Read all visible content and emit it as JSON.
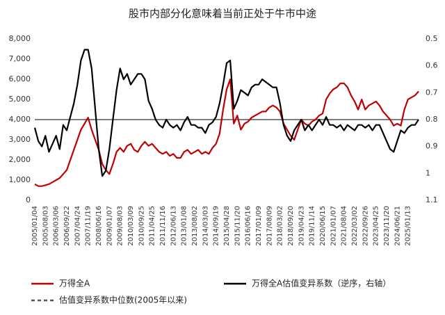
{
  "chart_data": {
    "type": "line",
    "title": "股市内部分化意味着当前正处于牛市中途",
    "categories": [
      "2005/01/04",
      null,
      null,
      "2005/08/03",
      null,
      null,
      "2006/03/06",
      null,
      null,
      "2006/09/22",
      null,
      null,
      "2007/04/24",
      null,
      null,
      "2007/11/19",
      null,
      null,
      "2008/06/16",
      null,
      null,
      "2009/01/07",
      null,
      null,
      "2009/08/03",
      null,
      null,
      "2010/03/09",
      null,
      null,
      "2010/09/25",
      null,
      null,
      "2011/04/25",
      null,
      null,
      "2011/11/16",
      null,
      null,
      "2012/06/13",
      null,
      null,
      "2013/01/08",
      null,
      null,
      "2013/08/02",
      null,
      null,
      "2014/03/03",
      null,
      null,
      "2014/09/19",
      null,
      null,
      "2015/04/28",
      null,
      null,
      "2015/11/20",
      null,
      null,
      "2016/06/16",
      null,
      null,
      "2017/01/09",
      null,
      null,
      "2017/08/09",
      null,
      null,
      "2018/03/02",
      null,
      null,
      "2018/09/20",
      null,
      null,
      "2019/04/23",
      null,
      null,
      "2019/11/14",
      null,
      null,
      "2020/06/15",
      null,
      null,
      "2021/01/07",
      null,
      null,
      "2021/08/04",
      null,
      null,
      "2022/03/02",
      null,
      null,
      "2022/09/26",
      null,
      null,
      "2023/04/25",
      null,
      null,
      "2023/11/20",
      null,
      null,
      "2024/06/21",
      null,
      null,
      "2025/01/13",
      null,
      null,
      null
    ],
    "series": [
      {
        "name": "万得全A",
        "color": "#c00000",
        "values": [
          800,
          700,
          700,
          750,
          800,
          900,
          1000,
          1100,
          1300,
          1500,
          2000,
          2500,
          3000,
          3500,
          3800,
          4100,
          3500,
          3000,
          2500,
          1800,
          1500,
          1300,
          1800,
          2400,
          2600,
          2400,
          2700,
          2800,
          2500,
          2400,
          2700,
          2900,
          2700,
          2800,
          2600,
          2400,
          2300,
          2400,
          2200,
          2300,
          2100,
          2100,
          2400,
          2500,
          2300,
          2400,
          2500,
          2300,
          2400,
          2300,
          2600,
          2800,
          3300,
          4500,
          5500,
          6000,
          3800,
          4200,
          3500,
          3800,
          3900,
          4100,
          4200,
          4300,
          4400,
          4400,
          4600,
          4700,
          4600,
          4400,
          3800,
          3500,
          3200,
          3000,
          3500,
          4000,
          3800,
          3700,
          3900,
          4000,
          4200,
          4300,
          5000,
          5300,
          5500,
          5600,
          5800,
          5800,
          5600,
          5200,
          4900,
          4500,
          5000,
          4500,
          4700,
          4800,
          4900,
          4700,
          4400,
          4200,
          4000,
          3700,
          3800,
          3700,
          4500,
          5000,
          5100,
          5200,
          5400
        ]
      },
      {
        "name": "万得全A估值变异系数（逆序，右轴）",
        "color": "#000000",
        "axis": "y2",
        "values": [
          0.83,
          0.88,
          0.9,
          0.86,
          0.92,
          0.89,
          0.86,
          0.91,
          0.82,
          0.84,
          0.79,
          0.74,
          0.67,
          0.58,
          0.54,
          0.54,
          0.61,
          0.76,
          0.91,
          1.01,
          0.99,
          0.91,
          0.8,
          0.69,
          0.61,
          0.65,
          0.63,
          0.67,
          0.65,
          0.63,
          0.63,
          0.65,
          0.73,
          0.76,
          0.8,
          0.82,
          0.83,
          0.8,
          0.82,
          0.83,
          0.82,
          0.84,
          0.81,
          0.79,
          0.82,
          0.82,
          0.83,
          0.83,
          0.85,
          0.82,
          0.81,
          0.79,
          0.74,
          0.67,
          0.59,
          0.58,
          0.76,
          0.73,
          0.69,
          0.7,
          0.71,
          0.68,
          0.67,
          0.67,
          0.65,
          0.66,
          0.67,
          0.68,
          0.68,
          0.74,
          0.82,
          0.86,
          0.88,
          0.84,
          0.82,
          0.8,
          0.84,
          0.82,
          0.84,
          0.82,
          0.8,
          0.82,
          0.79,
          0.82,
          0.82,
          0.83,
          0.82,
          0.84,
          0.82,
          0.83,
          0.84,
          0.82,
          0.82,
          0.83,
          0.82,
          0.84,
          0.82,
          0.82,
          0.85,
          0.88,
          0.91,
          0.92,
          0.88,
          0.84,
          0.85,
          0.83,
          0.82,
          0.82,
          0.8
        ]
      }
    ],
    "reference_line": {
      "name": "估值变异系数中位数(2005年以来)",
      "value": 0.8,
      "axis": "y2",
      "color": "#555555"
    },
    "ylim": [
      0,
      8000
    ],
    "yticks": [
      0,
      {
        "value": 1000,
        "label": "1,000"
      },
      {
        "value": 2000,
        "label": "2,000"
      },
      {
        "value": 3000,
        "label": "3,000"
      },
      {
        "value": 4000,
        "label": "4,000"
      },
      {
        "value": 5000,
        "label": "5,000"
      },
      {
        "value": 6000,
        "label": "6,000"
      },
      {
        "value": 7000,
        "label": "7,000"
      },
      {
        "value": 8000,
        "label": "8,000"
      }
    ],
    "y2lim": [
      1.1,
      0.5
    ],
    "y2ticks": [
      0.5,
      0.6,
      0.7,
      0.8,
      0.9,
      1,
      1.1
    ]
  }
}
